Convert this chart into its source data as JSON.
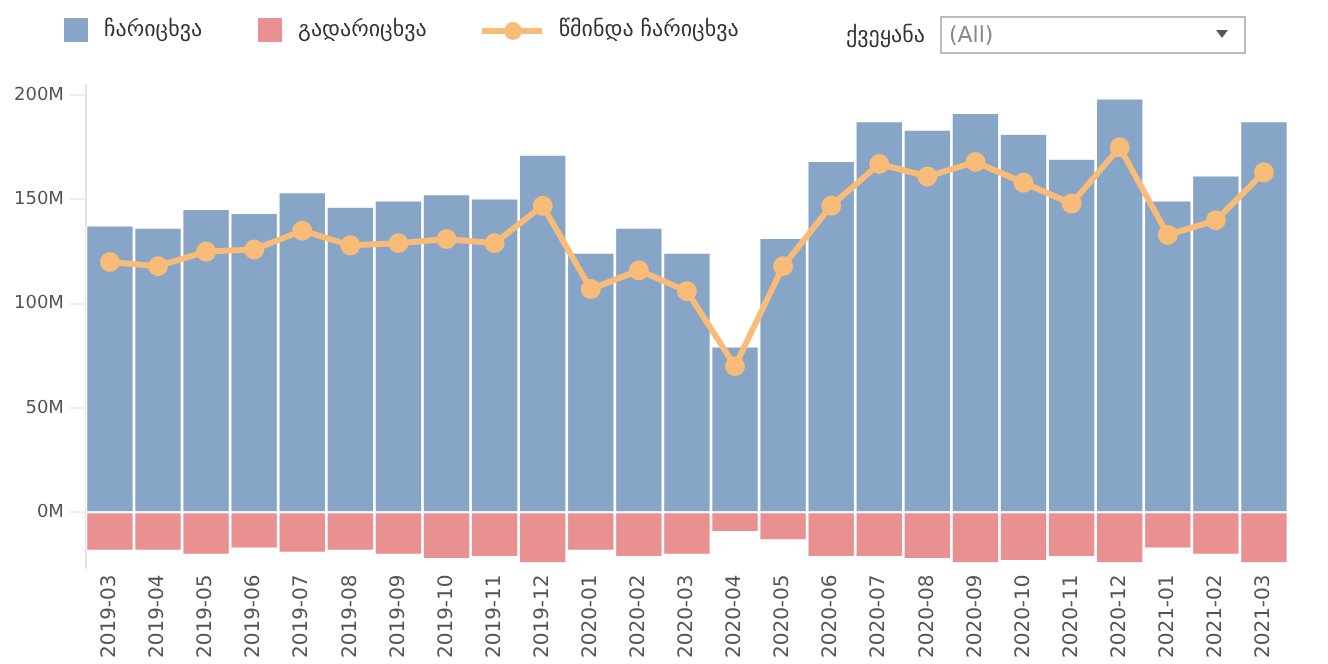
{
  "chart_data": {
    "type": "bar",
    "stacked": true,
    "legend": "top left",
    "grid": false,
    "marker": "circle",
    "line_style": "solid",
    "categories": [
      "2019-03",
      "2019-04",
      "2019-05",
      "2019-06",
      "2019-07",
      "2019-08",
      "2019-09",
      "2019-10",
      "2019-11",
      "2019-12",
      "2020-01",
      "2020-02",
      "2020-03",
      "2020-04",
      "2020-05",
      "2020-06",
      "2020-07",
      "2020-08",
      "2020-09",
      "2020-10",
      "2020-11",
      "2020-12",
      "2021-01",
      "2021-02",
      "2021-03"
    ],
    "series": [
      {
        "name": "ჩარიცხვა",
        "color": "#87a5c6",
        "values": [
          137,
          136,
          145,
          143,
          153,
          146,
          149,
          152,
          150,
          171,
          124,
          136,
          124,
          79,
          131,
          168,
          187,
          183,
          191,
          181,
          169,
          198,
          149,
          161,
          187
        ]
      },
      {
        "name": "გადარიცხვა",
        "color": "#e99191",
        "values": [
          -18,
          -18,
          -20,
          -17,
          -19,
          -18,
          -20,
          -22,
          -21,
          -24,
          -18,
          -21,
          -20,
          -9,
          -13,
          -21,
          -21,
          -22,
          -24,
          -23,
          -21,
          -24,
          -17,
          -20,
          -24
        ]
      },
      {
        "name": "წმინდა ჩარიცხვა",
        "type": "line",
        "color": "#f9bb78",
        "values": [
          120,
          118,
          125,
          126,
          135,
          128,
          129,
          131,
          129,
          147,
          107,
          116,
          106,
          70,
          118,
          147,
          167,
          161,
          168,
          158,
          148,
          175,
          133,
          140,
          163
        ]
      }
    ],
    "ylim": [
      -27,
      205
    ],
    "yticks": [
      {
        "value": 0,
        "label": "0M"
      },
      {
        "value": 50,
        "label": "50M"
      },
      {
        "value": 100,
        "label": "100M"
      },
      {
        "value": 150,
        "label": "150M"
      },
      {
        "value": 200,
        "label": "200M"
      }
    ],
    "annotations": [
      "ქვეყანა",
      "(All)"
    ]
  }
}
